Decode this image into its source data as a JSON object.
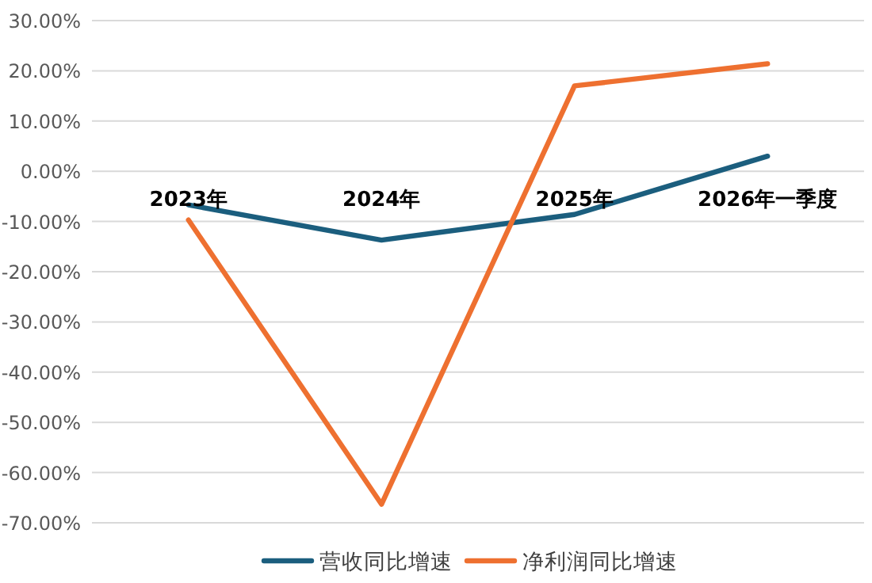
{
  "chart_data": {
    "type": "line",
    "categories": [
      "2023年",
      "2024年",
      "2025年",
      "2026年一季度"
    ],
    "series": [
      {
        "name": "营收同比增速",
        "color": "#1b5e7e",
        "values": [
          -6.7,
          -13.7,
          -8.6,
          3.0
        ]
      },
      {
        "name": "净利润同比增速",
        "color": "#ee7030",
        "values": [
          -9.7,
          -66.3,
          17.0,
          21.4
        ]
      }
    ],
    "ylim": [
      -70,
      30
    ],
    "yticks": [
      {
        "value": 30,
        "label": "30.00%"
      },
      {
        "value": 20,
        "label": "20.00%"
      },
      {
        "value": 10,
        "label": "10.00%"
      },
      {
        "value": 0,
        "label": "0.00%"
      },
      {
        "value": -10,
        "label": "-10.00%"
      },
      {
        "value": -20,
        "label": "-20.00%"
      },
      {
        "value": -30,
        "label": "-30.00%"
      },
      {
        "value": -40,
        "label": "-40.00%"
      },
      {
        "value": -50,
        "label": "-50.00%"
      },
      {
        "value": -60,
        "label": "-60.00%"
      },
      {
        "value": -70,
        "label": "-70.00%"
      }
    ],
    "grid": "y",
    "legend": "bottom",
    "marker": "none",
    "line_style": "solid"
  }
}
